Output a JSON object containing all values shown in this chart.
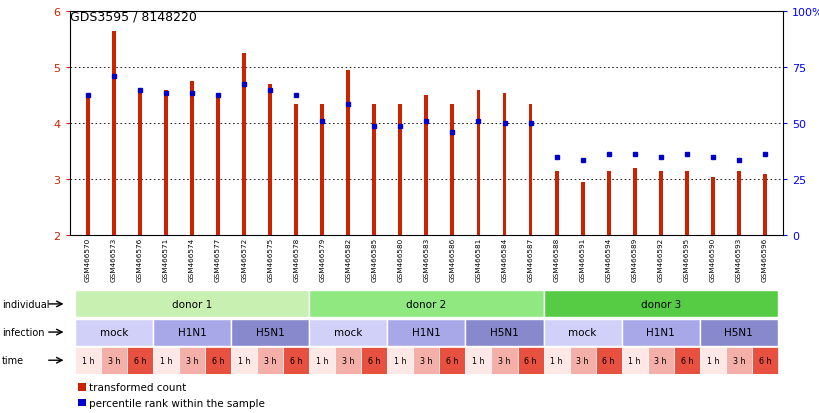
{
  "title": "GDS3595 / 8148220",
  "ylim": [
    2,
    6
  ],
  "yticks": [
    2,
    3,
    4,
    5,
    6
  ],
  "right_yticks": [
    0,
    25,
    50,
    75,
    100
  ],
  "right_ytick_labels": [
    "0",
    "25",
    "50",
    "75",
    "100%"
  ],
  "bar_color": "#cc2200",
  "dot_color": "#0000cc",
  "samples": [
    "GSM466570",
    "GSM466573",
    "GSM466576",
    "GSM466571",
    "GSM466574",
    "GSM466577",
    "GSM466572",
    "GSM466575",
    "GSM466578",
    "GSM466579",
    "GSM466582",
    "GSM466585",
    "GSM466580",
    "GSM466583",
    "GSM466586",
    "GSM466581",
    "GSM466584",
    "GSM466587",
    "GSM466588",
    "GSM466591",
    "GSM466594",
    "GSM466589",
    "GSM466592",
    "GSM466595",
    "GSM466590",
    "GSM466593",
    "GSM466596"
  ],
  "bar_heights": [
    4.5,
    5.65,
    4.6,
    4.6,
    4.75,
    4.5,
    5.25,
    4.7,
    4.35,
    4.35,
    4.95,
    4.35,
    4.35,
    4.5,
    4.35,
    4.6,
    4.55,
    4.35,
    3.15,
    2.95,
    3.15,
    3.2,
    3.15,
    3.15,
    3.05,
    3.15,
    3.1
  ],
  "dot_positions": [
    4.5,
    4.85,
    4.6,
    4.55,
    4.55,
    4.5,
    4.7,
    4.6,
    4.5,
    4.05,
    4.35,
    3.95,
    3.95,
    4.05,
    3.85,
    4.05,
    4.0,
    4.0,
    3.4,
    3.35,
    3.45,
    3.45,
    3.4,
    3.45,
    3.4,
    3.35,
    3.45
  ],
  "individual_groups": [
    {
      "label": "donor 1",
      "start": 0,
      "end": 9,
      "color": "#c8f0b0"
    },
    {
      "label": "donor 2",
      "start": 9,
      "end": 18,
      "color": "#90e880"
    },
    {
      "label": "donor 3",
      "start": 18,
      "end": 27,
      "color": "#55cc44"
    }
  ],
  "infection_groups": [
    {
      "label": "mock",
      "start": 0,
      "end": 3,
      "color": "#d0d0f8"
    },
    {
      "label": "H1N1",
      "start": 3,
      "end": 6,
      "color": "#a8a8e8"
    },
    {
      "label": "H5N1",
      "start": 6,
      "end": 9,
      "color": "#8888cc"
    },
    {
      "label": "mock",
      "start": 9,
      "end": 12,
      "color": "#d0d0f8"
    },
    {
      "label": "H1N1",
      "start": 12,
      "end": 15,
      "color": "#a8a8e8"
    },
    {
      "label": "H5N1",
      "start": 15,
      "end": 18,
      "color": "#8888cc"
    },
    {
      "label": "mock",
      "start": 18,
      "end": 21,
      "color": "#d0d0f8"
    },
    {
      "label": "H1N1",
      "start": 21,
      "end": 24,
      "color": "#a8a8e8"
    },
    {
      "label": "H5N1",
      "start": 24,
      "end": 27,
      "color": "#8888cc"
    }
  ],
  "time_labels": [
    "1 h",
    "3 h",
    "6 h",
    "1 h",
    "3 h",
    "6 h",
    "1 h",
    "3 h",
    "6 h",
    "1 h",
    "3 h",
    "6 h",
    "1 h",
    "3 h",
    "6 h",
    "1 h",
    "3 h",
    "6 h",
    "1 h",
    "3 h",
    "6 h",
    "1 h",
    "3 h",
    "6 h",
    "1 h",
    "3 h",
    "6 h"
  ],
  "time_colors": [
    "#fde8e6",
    "#f4b0a8",
    "#e85040",
    "#fde8e6",
    "#f4b0a8",
    "#e85040",
    "#fde8e6",
    "#f4b0a8",
    "#e85040",
    "#fde8e6",
    "#f4b0a8",
    "#e85040",
    "#fde8e6",
    "#f4b0a8",
    "#e85040",
    "#fde8e6",
    "#f4b0a8",
    "#e85040",
    "#fde8e6",
    "#f4b0a8",
    "#e85040",
    "#fde8e6",
    "#f4b0a8",
    "#e85040",
    "#fde8e6",
    "#f4b0a8",
    "#e85040"
  ],
  "row_labels": [
    "individual",
    "infection",
    "time"
  ],
  "legend_items": [
    {
      "color": "#cc2200",
      "label": "transformed count"
    },
    {
      "color": "#0000cc",
      "label": "percentile rank within the sample"
    }
  ],
  "bg_color": "#f0f0f0"
}
